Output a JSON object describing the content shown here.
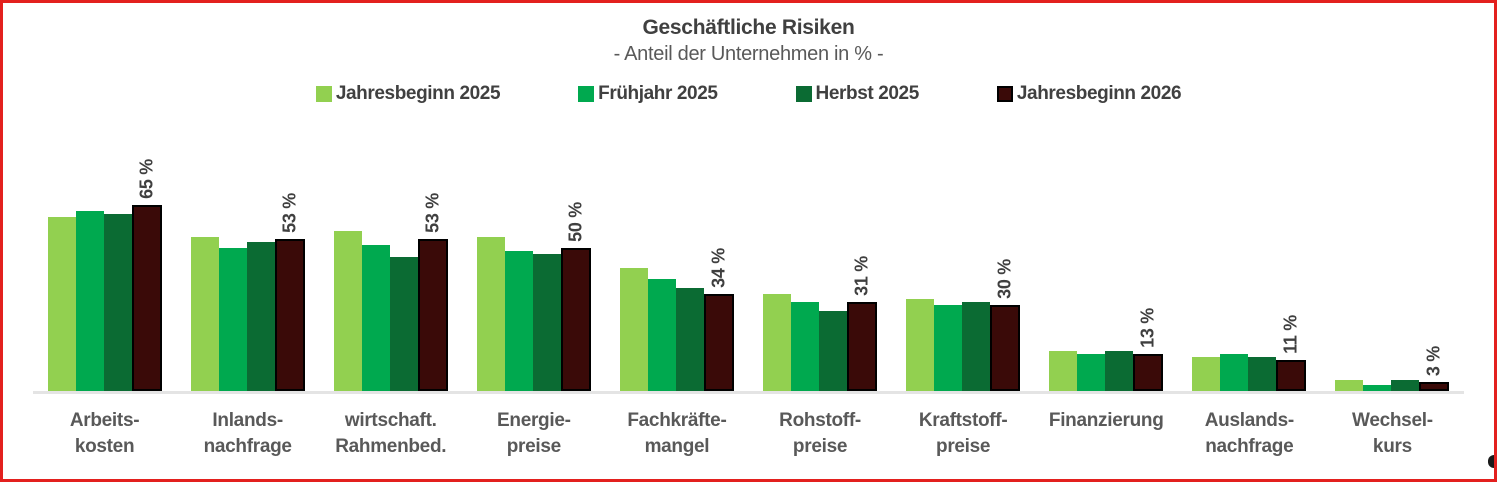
{
  "header": {
    "title": "Geschäftliche Risiken",
    "subtitle": "- Anteil der Unternehmen in % -"
  },
  "chart_data": {
    "type": "bar",
    "title": "Geschäftliche Risiken",
    "subtitle": "- Anteil der Unternehmen in % -",
    "unit": "%",
    "ylim": [
      0,
      70
    ],
    "grid": false,
    "legend_position": "top",
    "axis_line_color": "#e4e4e4",
    "value_labels": {
      "series": "Jahresbeginn 2026",
      "rotation": 90
    },
    "categories": [
      [
        "Arbeits-",
        "kosten"
      ],
      [
        "Inlands-",
        "nachfrage"
      ],
      [
        "wirtschaft.",
        "Rahmenbed."
      ],
      [
        "Energie-",
        "preise"
      ],
      [
        "Fachkräfte-",
        "mangel"
      ],
      [
        "Rohstoff-",
        "preise"
      ],
      [
        "Kraftstoff-",
        "preise"
      ],
      [
        "Finanzierung"
      ],
      [
        "Auslands-",
        "nachfrage"
      ],
      [
        "Wechsel-",
        "kurs"
      ]
    ],
    "series": [
      {
        "name": "Jahresbeginn 2025",
        "color": "#92d050",
        "values": [
          61,
          54,
          56,
          54,
          43,
          34,
          32,
          14,
          12,
          4
        ]
      },
      {
        "name": "Frühjahr 2025",
        "color": "#00a94f",
        "values": [
          63,
          50,
          51,
          49,
          39,
          31,
          30,
          13,
          13,
          2
        ]
      },
      {
        "name": "Herbst 2025",
        "color": "#0b6b33",
        "values": [
          62,
          52,
          47,
          48,
          36,
          28,
          31,
          14,
          12,
          4
        ]
      },
      {
        "name": "Jahresbeginn 2026",
        "color": "#3a0a08",
        "outlined": true,
        "outline_color": "#000000",
        "values": [
          65,
          53,
          53,
          50,
          34,
          31,
          30,
          13,
          11,
          3
        ],
        "data_labels": [
          "65 %",
          "53 %",
          "53 %",
          "50 %",
          "34 %",
          "31 %",
          "30 %",
          "13 %",
          "11 %",
          "3 %"
        ]
      }
    ]
  }
}
